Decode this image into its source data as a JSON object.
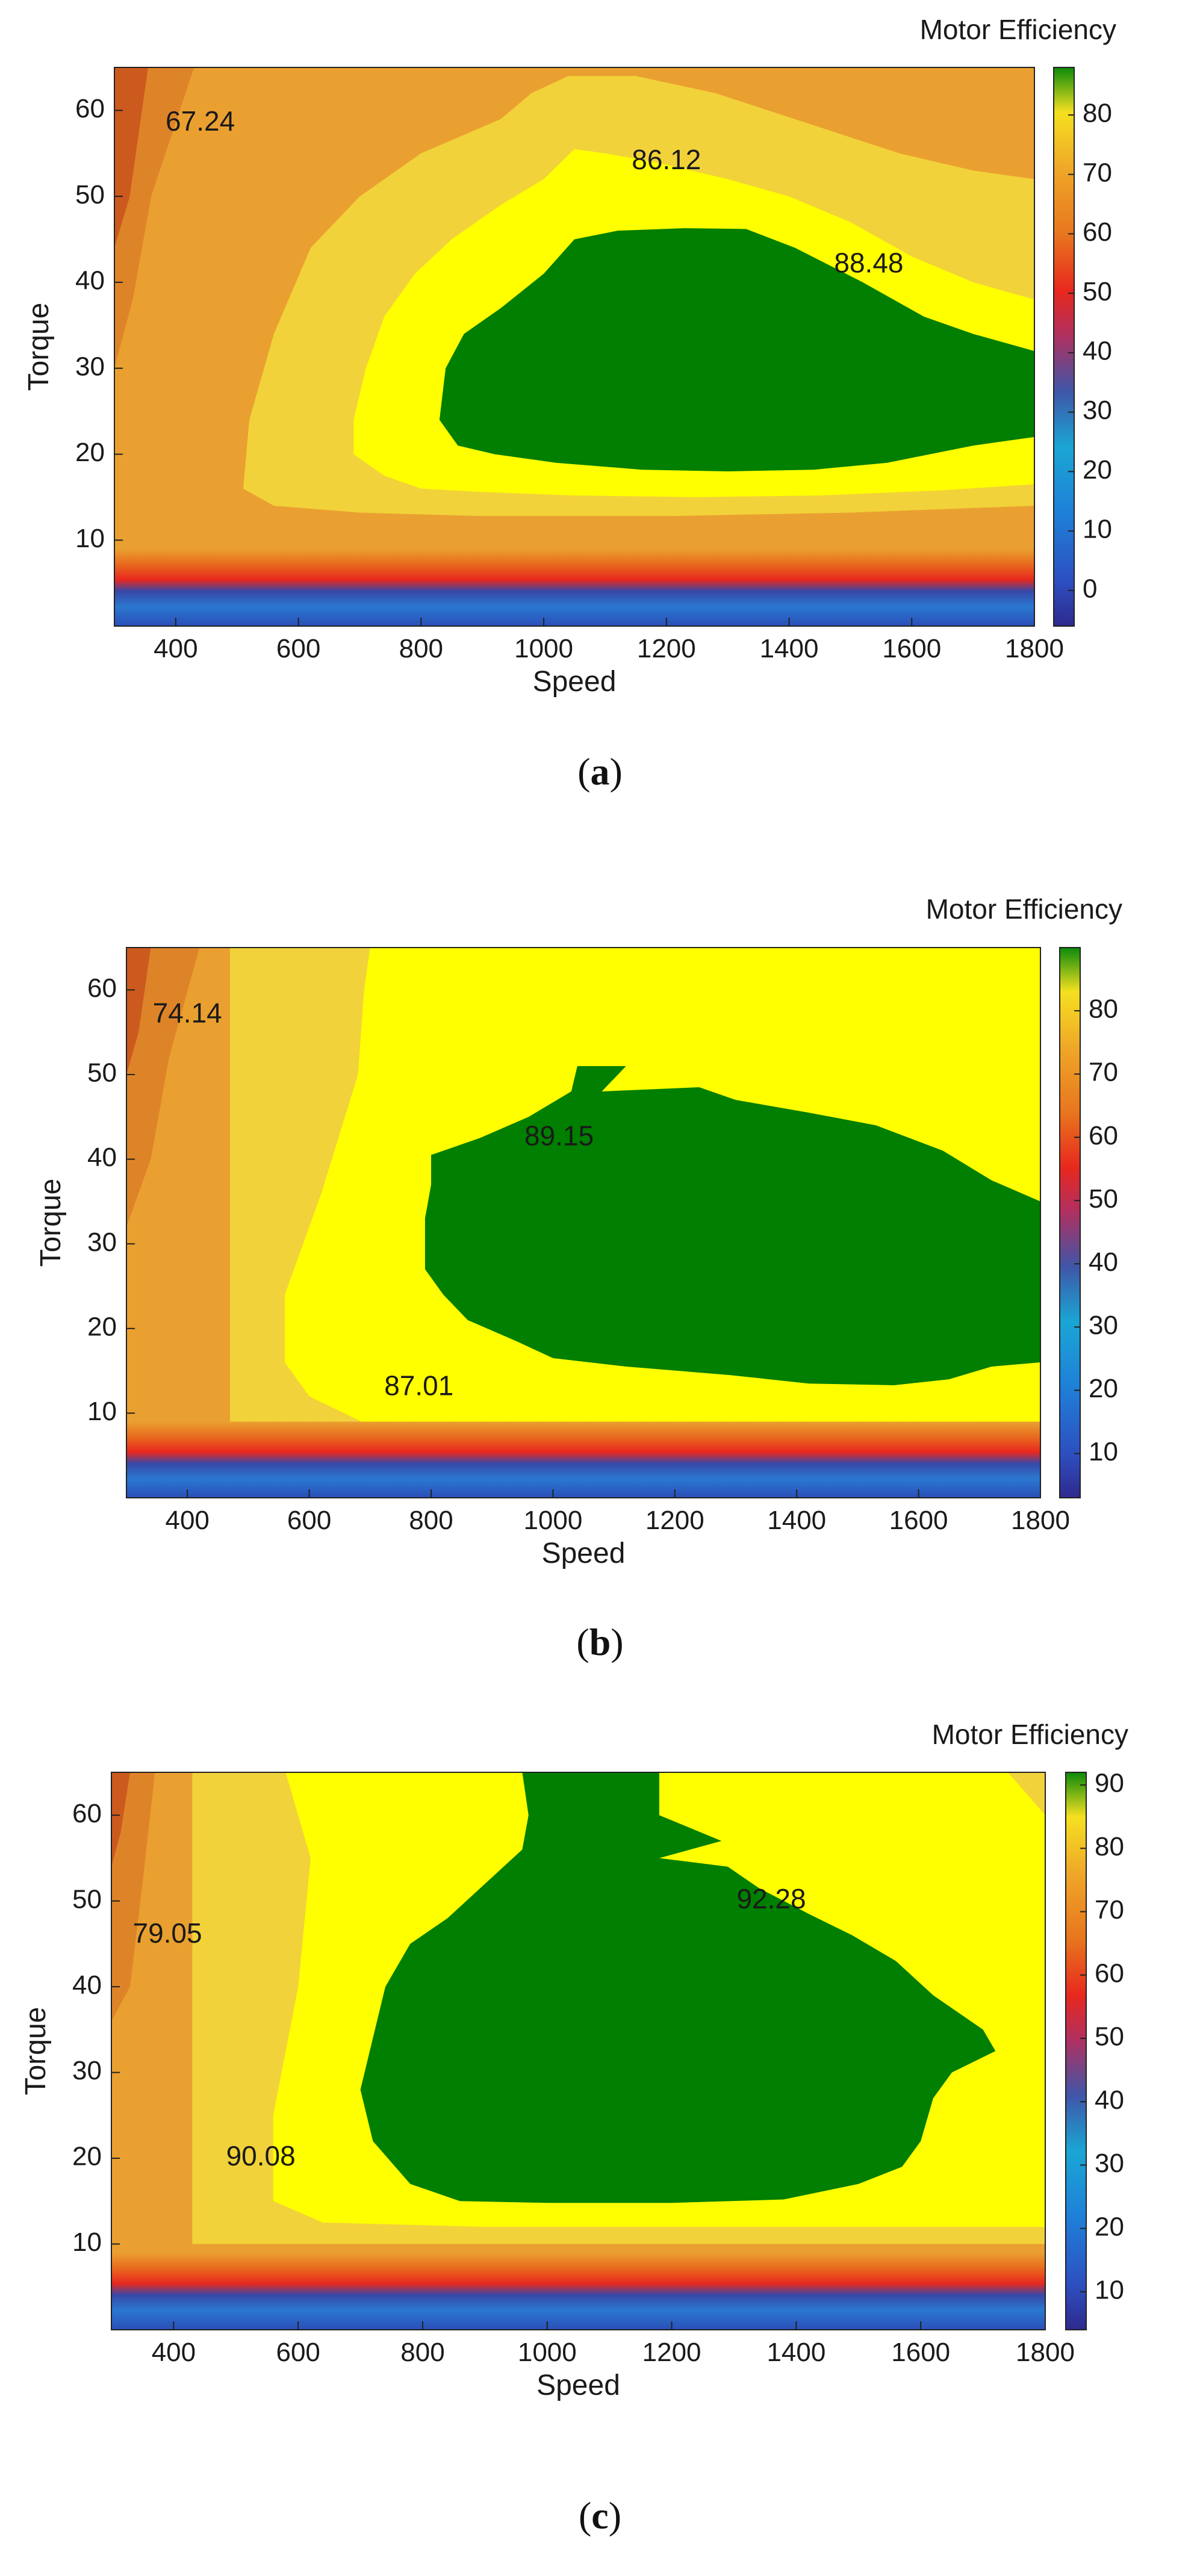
{
  "chart_data": [
    {
      "type": "heatmap",
      "panel": "a",
      "caption": "a",
      "colorbar_title": "Motor Efficiency",
      "xlabel": "Speed",
      "ylabel": "Torque",
      "xlim": [
        300,
        1800
      ],
      "ylim": [
        0,
        65
      ],
      "xticks": [
        400,
        600,
        800,
        1000,
        1200,
        1400,
        1600,
        1800
      ],
      "yticks": [
        10,
        20,
        30,
        40,
        50,
        60
      ],
      "colorbar_range": [
        -6,
        88
      ],
      "colorbar_ticks": [
        0,
        10,
        20,
        30,
        40,
        50,
        60,
        70,
        80
      ],
      "annotations": [
        {
          "text": "67.24",
          "x": 440,
          "y": 58.5
        },
        {
          "text": "86.12",
          "x": 1200,
          "y": 54
        },
        {
          "text": "88.48",
          "x": 1530,
          "y": 42
        }
      ],
      "regions": {
        "green_88_48": [
          [
            1050,
            45
          ],
          [
            1120,
            46
          ],
          [
            1230,
            46.3
          ],
          [
            1330,
            46.2
          ],
          [
            1410,
            44
          ],
          [
            1520,
            40
          ],
          [
            1620,
            36
          ],
          [
            1700,
            34
          ],
          [
            1800,
            32
          ],
          [
            1800,
            22
          ],
          [
            1700,
            21
          ],
          [
            1560,
            19
          ],
          [
            1440,
            18.2
          ],
          [
            1300,
            18
          ],
          [
            1160,
            18.2
          ],
          [
            1020,
            19
          ],
          [
            920,
            20
          ],
          [
            860,
            21
          ],
          [
            830,
            24
          ],
          [
            840,
            30
          ],
          [
            870,
            34
          ],
          [
            930,
            37
          ],
          [
            1000,
            41
          ]
        ],
        "yellow_86_12": [
          [
            1000,
            52
          ],
          [
            1050,
            55.5
          ],
          [
            1100,
            55
          ],
          [
            1180,
            54
          ],
          [
            1300,
            52
          ],
          [
            1400,
            50
          ],
          [
            1500,
            47
          ],
          [
            1600,
            43
          ],
          [
            1700,
            40
          ],
          [
            1800,
            38
          ],
          [
            1800,
            16.5
          ],
          [
            1650,
            15.8
          ],
          [
            1450,
            15.2
          ],
          [
            1250,
            15
          ],
          [
            1050,
            15.2
          ],
          [
            900,
            15.6
          ],
          [
            800,
            16
          ],
          [
            740,
            17.5
          ],
          [
            690,
            20
          ],
          [
            690,
            24
          ],
          [
            710,
            30
          ],
          [
            740,
            36
          ],
          [
            790,
            41
          ],
          [
            850,
            45
          ],
          [
            930,
            49
          ]
        ],
        "band_light_80": [
          [
            930,
            59
          ],
          [
            980,
            62
          ],
          [
            1040,
            64
          ],
          [
            1150,
            64
          ],
          [
            1280,
            62
          ],
          [
            1430,
            58.5
          ],
          [
            1580,
            55
          ],
          [
            1700,
            53
          ],
          [
            1800,
            52
          ],
          [
            1800,
            14
          ],
          [
            1500,
            13.2
          ],
          [
            1200,
            12.8
          ],
          [
            900,
            12.8
          ],
          [
            700,
            13.2
          ],
          [
            560,
            14
          ],
          [
            510,
            16
          ],
          [
            520,
            24
          ],
          [
            560,
            34
          ],
          [
            620,
            44
          ],
          [
            700,
            50
          ],
          [
            800,
            55
          ]
        ],
        "band_orange_70": [
          [
            300,
            65
          ],
          [
            430,
            65
          ],
          [
            360,
            50
          ],
          [
            330,
            38
          ],
          [
            300,
            30
          ]
        ],
        "band_deep_65": [
          [
            300,
            65
          ],
          [
            355,
            65
          ],
          [
            325,
            50
          ],
          [
            300,
            44
          ]
        ]
      }
    },
    {
      "type": "heatmap",
      "panel": "b",
      "caption": "b",
      "colorbar_title": "Motor Efficiency",
      "xlabel": "Speed",
      "ylabel": "Torque",
      "xlim": [
        300,
        1800
      ],
      "ylim": [
        0,
        65
      ],
      "xticks": [
        400,
        600,
        800,
        1000,
        1200,
        1400,
        1600,
        1800
      ],
      "yticks": [
        10,
        20,
        30,
        40,
        50,
        60
      ],
      "colorbar_range": [
        3,
        90
      ],
      "colorbar_ticks": [
        10,
        20,
        30,
        40,
        50,
        60,
        70,
        80
      ],
      "annotations": [
        {
          "text": "74.14",
          "x": 400,
          "y": 57
        },
        {
          "text": "89.15",
          "x": 1010,
          "y": 42.5
        },
        {
          "text": "87.01",
          "x": 780,
          "y": 13
        }
      ],
      "regions": {
        "green_89_15": [
          [
            1040,
            51
          ],
          [
            1120,
            51
          ],
          [
            1080,
            48
          ],
          [
            1240,
            48.5
          ],
          [
            1300,
            47
          ],
          [
            1420,
            45.5
          ],
          [
            1530,
            44
          ],
          [
            1640,
            41
          ],
          [
            1720,
            37.5
          ],
          [
            1800,
            35
          ],
          [
            1800,
            16
          ],
          [
            1720,
            15.5
          ],
          [
            1650,
            14
          ],
          [
            1560,
            13.3
          ],
          [
            1420,
            13.5
          ],
          [
            1290,
            14.5
          ],
          [
            1120,
            15.5
          ],
          [
            1000,
            16.5
          ],
          [
            940,
            18.5
          ],
          [
            860,
            21
          ],
          [
            820,
            24
          ],
          [
            790,
            27
          ],
          [
            790,
            33
          ],
          [
            800,
            37
          ],
          [
            800,
            40.5
          ],
          [
            880,
            42.5
          ],
          [
            960,
            45
          ],
          [
            1030,
            48
          ]
        ],
        "yellow_87_01": [
          [
            700,
            65
          ],
          [
            1800,
            65
          ],
          [
            1800,
            7.5
          ],
          [
            1300,
            7.8
          ],
          [
            900,
            8
          ],
          [
            700,
            8.5
          ],
          [
            600,
            12
          ],
          [
            560,
            16
          ],
          [
            560,
            24
          ],
          [
            620,
            36
          ],
          [
            680,
            50
          ],
          [
            690,
            60
          ]
        ],
        "band_light_84": [
          [
            470,
            65
          ],
          [
            1800,
            65
          ],
          [
            1800,
            8
          ],
          [
            470,
            8
          ]
        ],
        "band_orange_78": [
          [
            300,
            65
          ],
          [
            420,
            65
          ],
          [
            370,
            52
          ],
          [
            340,
            40
          ],
          [
            300,
            32
          ]
        ],
        "band_deep_74": [
          [
            300,
            65
          ],
          [
            340,
            65
          ],
          [
            320,
            55
          ],
          [
            300,
            50
          ]
        ]
      }
    },
    {
      "type": "heatmap",
      "panel": "c",
      "caption": "c",
      "colorbar_title": "Motor Efficiency",
      "xlabel": "Speed",
      "ylabel": "Torque",
      "xlim": [
        300,
        1800
      ],
      "ylim": [
        0,
        65
      ],
      "xticks": [
        400,
        600,
        800,
        1000,
        1200,
        1400,
        1600,
        1800
      ],
      "yticks": [
        10,
        20,
        30,
        40,
        50,
        60
      ],
      "colorbar_range": [
        4,
        92
      ],
      "colorbar_ticks": [
        10,
        20,
        30,
        40,
        50,
        60,
        70,
        80,
        90
      ],
      "annotations": [
        {
          "text": "79.05",
          "x": 390,
          "y": 46
        },
        {
          "text": "92.28",
          "x": 1360,
          "y": 50
        },
        {
          "text": "90.08",
          "x": 540,
          "y": 20
        }
      ],
      "regions": {
        "green_92_28": [
          [
            960,
            65
          ],
          [
            1180,
            65
          ],
          [
            1180,
            60
          ],
          [
            1280,
            57
          ],
          [
            1180,
            55
          ],
          [
            1290,
            54
          ],
          [
            1340,
            51.5
          ],
          [
            1420,
            48.5
          ],
          [
            1490,
            46
          ],
          [
            1560,
            43
          ],
          [
            1620,
            39
          ],
          [
            1700,
            35
          ],
          [
            1720,
            32.5
          ],
          [
            1650,
            30
          ],
          [
            1620,
            27
          ],
          [
            1600,
            22
          ],
          [
            1570,
            19
          ],
          [
            1500,
            17
          ],
          [
            1380,
            15.2
          ],
          [
            1200,
            14.8
          ],
          [
            1000,
            14.8
          ],
          [
            860,
            15
          ],
          [
            780,
            17
          ],
          [
            720,
            22
          ],
          [
            700,
            28
          ],
          [
            720,
            34
          ],
          [
            740,
            40
          ],
          [
            780,
            45
          ],
          [
            840,
            48
          ],
          [
            900,
            52
          ],
          [
            960,
            56
          ],
          [
            970,
            60
          ]
        ],
        "yellow_90_08": [
          [
            580,
            65
          ],
          [
            1740,
            65
          ],
          [
            1800,
            60
          ],
          [
            1800,
            12
          ],
          [
            1400,
            12
          ],
          [
            900,
            12
          ],
          [
            640,
            12.5
          ],
          [
            560,
            15
          ],
          [
            560,
            25
          ],
          [
            600,
            40
          ],
          [
            620,
            55
          ]
        ],
        "band_light_86": [
          [
            430,
            65
          ],
          [
            1800,
            65
          ],
          [
            1800,
            10
          ],
          [
            430,
            10
          ]
        ],
        "band_orange_82": [
          [
            300,
            65
          ],
          [
            370,
            65
          ],
          [
            350,
            52
          ],
          [
            330,
            40
          ],
          [
            300,
            36
          ]
        ],
        "band_deep_79": [
          [
            300,
            65
          ],
          [
            330,
            65
          ],
          [
            315,
            58
          ],
          [
            300,
            54
          ]
        ]
      }
    }
  ]
}
